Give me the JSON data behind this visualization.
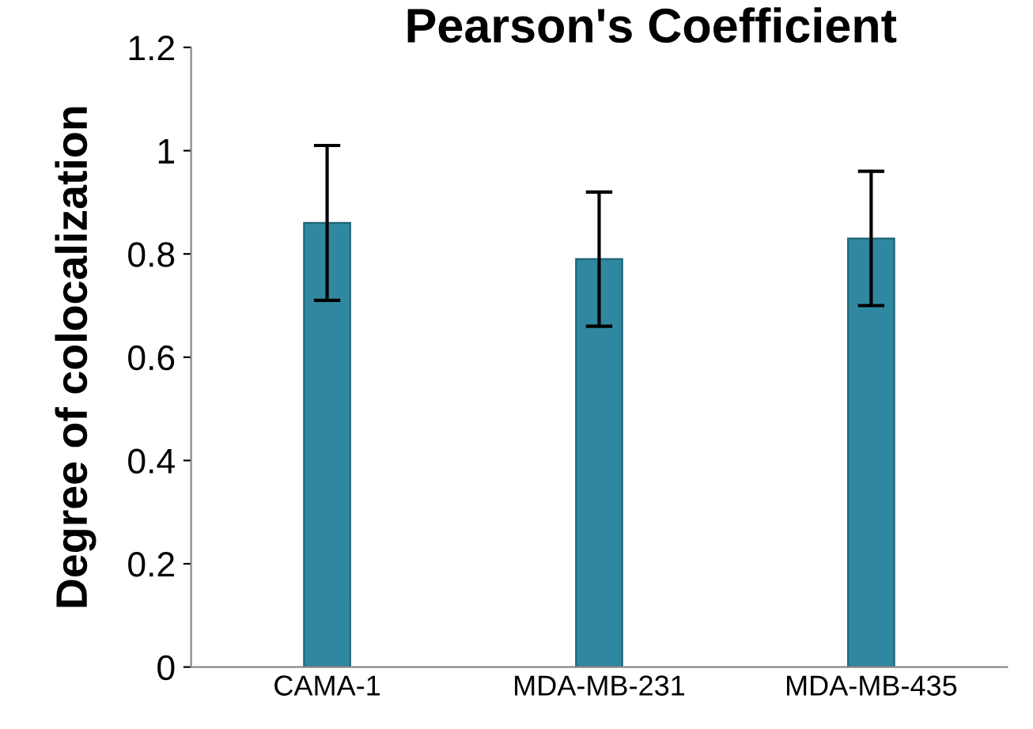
{
  "chart_data": {
    "type": "bar",
    "title": "Pearson's Coefficient",
    "ylabel": "Degree of colocalization",
    "categories": [
      "CAMA-1",
      "MDA-MB-231",
      "MDA-MB-435"
    ],
    "values": [
      0.86,
      0.79,
      0.83
    ],
    "errors": [
      0.15,
      0.13,
      0.13
    ],
    "color": "#2f88a0",
    "ylim": [
      0,
      1.2
    ],
    "yticks": [
      0,
      0.2,
      0.4,
      0.6,
      0.8,
      1,
      1.2
    ],
    "grid": false,
    "legend": false
  }
}
